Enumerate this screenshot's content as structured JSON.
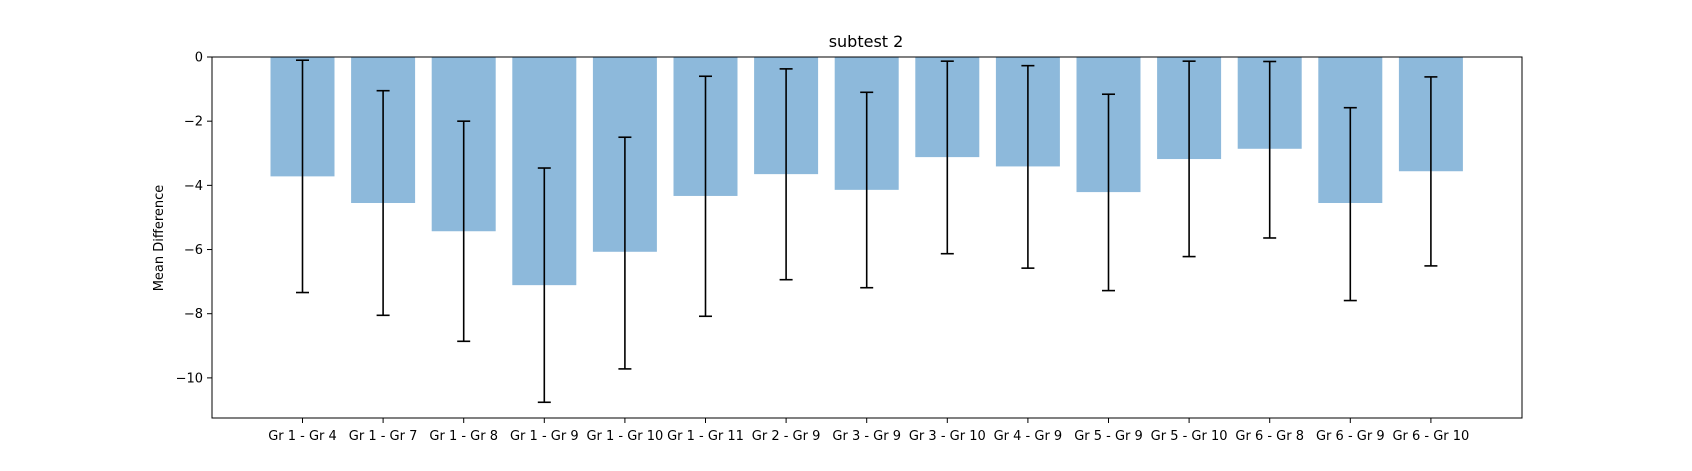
{
  "chart_data": {
    "type": "bar",
    "title": "subtest 2",
    "xlabel": "",
    "ylabel": "Mean Difference",
    "categories": [
      "Gr 1 - Gr 4",
      "Gr 1 - Gr 7",
      "Gr 1 - Gr 8",
      "Gr 1 - Gr 9",
      "Gr 1 - Gr 10",
      "Gr 1 - Gr 11",
      "Gr 2 - Gr 9",
      "Gr 3 - Gr 9",
      "Gr 3 - Gr 10",
      "Gr 4 - Gr 9",
      "Gr 5 - Gr 9",
      "Gr 5 - Gr 10",
      "Gr 6 - Gr 8",
      "Gr 6 - Gr 9",
      "Gr 6 - Gr 10"
    ],
    "values": [
      -3.72,
      -4.55,
      -5.43,
      -7.11,
      -6.07,
      -4.33,
      -3.65,
      -4.14,
      -3.12,
      -3.41,
      -4.21,
      -3.18,
      -2.86,
      -4.55,
      -3.56
    ],
    "error_low": [
      -7.34,
      -8.05,
      -8.86,
      -10.76,
      -9.72,
      -8.08,
      -6.94,
      -7.19,
      -6.13,
      -6.58,
      -7.28,
      -6.22,
      -5.64,
      -7.59,
      -6.51
    ],
    "error_high": [
      -0.1,
      -1.05,
      -2.0,
      -3.46,
      -2.5,
      -0.6,
      -0.37,
      -1.1,
      -0.13,
      -0.27,
      -1.16,
      -0.13,
      -0.14,
      -1.58,
      -0.62
    ],
    "ylim": [
      -11.25,
      0
    ],
    "yticks": [
      0,
      -2,
      -4,
      -6,
      -8,
      -10
    ],
    "ytick_labels": [
      "0",
      "−2",
      "−4",
      "−6",
      "−8",
      "−10"
    ],
    "bar_color": "#8db9db",
    "error_color": "#000000",
    "grid": false,
    "legend": "none"
  }
}
